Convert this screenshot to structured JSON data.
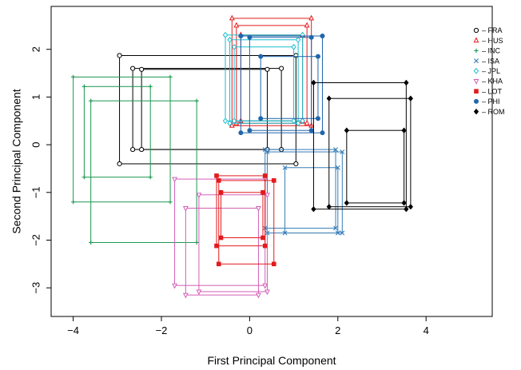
{
  "chart_data": {
    "type": "scatter",
    "title": "",
    "xlabel": "First Principal Component",
    "ylabel": "Second Principal Component",
    "xlim": [
      -4.5,
      5.5
    ],
    "ylim": [
      -3.6,
      2.9
    ],
    "xticks": [
      -4,
      -2,
      0,
      2,
      4
    ],
    "yticks": [
      -3,
      -2,
      -1,
      0,
      1,
      2
    ],
    "legend_position": "top-right",
    "series": [
      {
        "name": "FRA",
        "marker": "circle-open",
        "color": "#000000",
        "boxes": [
          [
            -2.95,
            1.05,
            -0.4,
            1.87
          ],
          [
            -2.65,
            0.72,
            -0.1,
            1.6
          ],
          [
            -2.45,
            0.4,
            -0.1,
            1.58
          ]
        ]
      },
      {
        "name": "HUS",
        "marker": "triangle-up",
        "color": "#e41a1c",
        "boxes": [
          [
            -0.4,
            1.4,
            0.4,
            2.65
          ],
          [
            -0.3,
            1.3,
            0.45,
            2.5
          ],
          [
            -0.2,
            1.2,
            0.5,
            2.3
          ]
        ]
      },
      {
        "name": "INC",
        "marker": "plus",
        "color": "#1a9850",
        "boxes": [
          [
            -4.0,
            -1.8,
            -1.2,
            1.42
          ],
          [
            -3.75,
            -2.25,
            -0.68,
            1.22
          ],
          [
            -3.6,
            -1.2,
            -2.05,
            0.92
          ]
        ]
      },
      {
        "name": "ISA",
        "marker": "x",
        "color": "#377eb8",
        "boxes": [
          [
            0.35,
            1.95,
            -1.75,
            -0.1
          ],
          [
            0.4,
            2.1,
            -1.85,
            -0.15
          ],
          [
            0.8,
            2.0,
            -1.85,
            -0.48
          ]
        ]
      },
      {
        "name": "JPL",
        "marker": "diamond-open",
        "color": "#17becf",
        "boxes": [
          [
            -0.55,
            1.2,
            0.5,
            2.3
          ],
          [
            -0.45,
            1.1,
            0.45,
            2.2
          ],
          [
            -0.35,
            1.0,
            0.5,
            2.05
          ]
        ]
      },
      {
        "name": "KHA",
        "marker": "triangle-down",
        "color": "#d35fb7",
        "boxes": [
          [
            -1.7,
            0.35,
            -2.95,
            -0.72
          ],
          [
            -1.45,
            0.2,
            -3.15,
            -1.33
          ],
          [
            -1.15,
            0.4,
            -3.08,
            -1.05
          ]
        ]
      },
      {
        "name": "LOT",
        "marker": "square",
        "color": "#e31a1c",
        "boxes": [
          [
            -0.7,
            0.55,
            -2.5,
            -0.75
          ],
          [
            -0.75,
            0.35,
            -2.12,
            -0.65
          ],
          [
            -0.65,
            0.3,
            -1.95,
            -1.0
          ]
        ]
      },
      {
        "name": "PHI",
        "marker": "circle",
        "color": "#2166ac",
        "boxes": [
          [
            -0.2,
            1.65,
            0.25,
            2.28
          ],
          [
            0.0,
            1.4,
            0.3,
            2.25
          ],
          [
            0.25,
            1.55,
            0.55,
            1.85
          ]
        ]
      },
      {
        "name": "ROM",
        "marker": "diamond",
        "color": "#000000",
        "boxes": [
          [
            1.45,
            3.55,
            -1.35,
            1.3
          ],
          [
            1.8,
            3.65,
            -1.3,
            0.97
          ],
          [
            2.2,
            3.5,
            -1.22,
            0.3
          ]
        ]
      }
    ]
  }
}
